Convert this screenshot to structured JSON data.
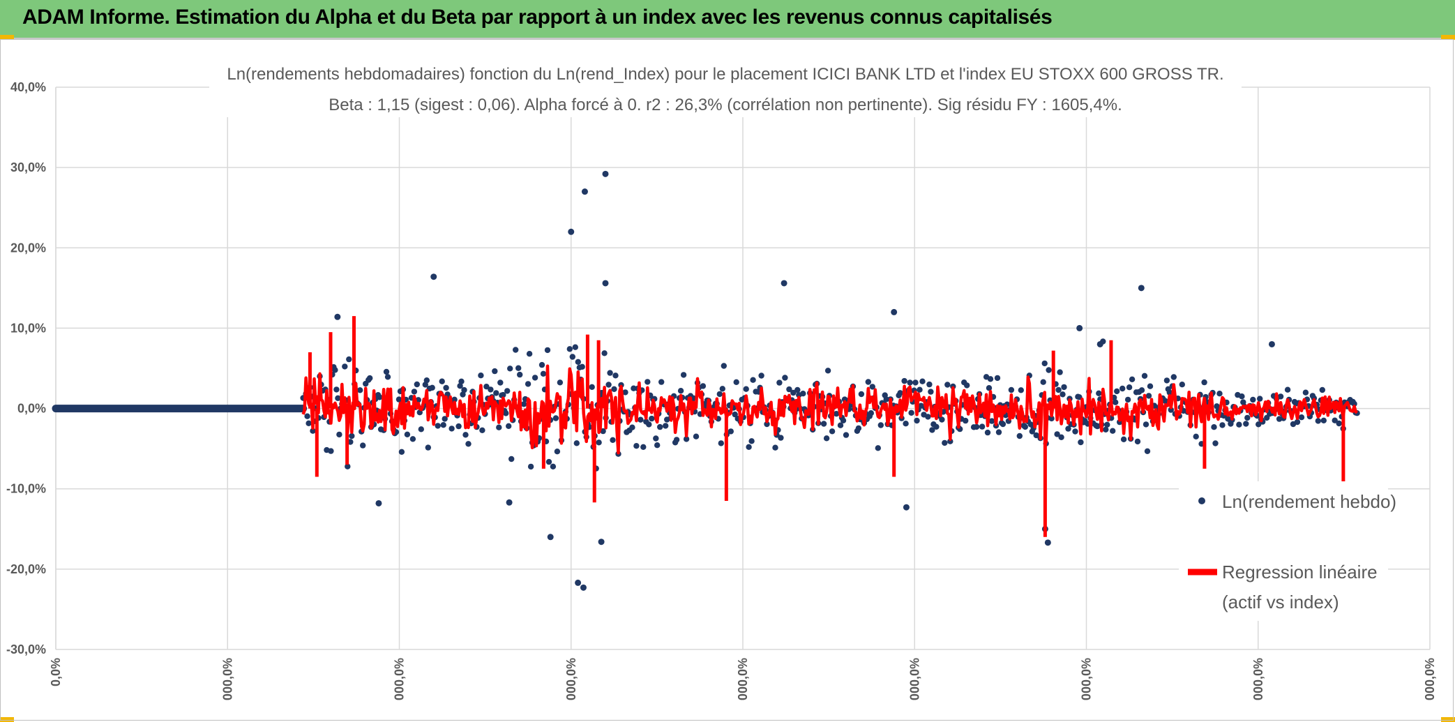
{
  "header": {
    "title": "ADAM Informe. Estimation du Alpha et du Beta par rapport à un index avec les revenus connus capitalisés"
  },
  "colors": {
    "header_bg": "#7ec87b",
    "series_points": "#203864",
    "series_regression": "#ff0000",
    "grid": "#d9d9d9",
    "text": "#595959"
  },
  "chart_data": {
    "type": "scatter",
    "title_line1": "Ln(rendements hebdomadaires) fonction du Ln(rend_Index) pour le placement ICICI BANK LTD et l'index EU STOXX 600 GROSS TR.",
    "title_line2": "Beta : 1,15 (sigest : 0,06). Alpha forcé à 0. r2 : 26,3% (corrélation non pertinente). Sig résidu FY : 1605,4%.",
    "ylim": [
      -0.3,
      0.4
    ],
    "y_ticks": [
      "40,0%",
      "30,0%",
      "20,0%",
      "10,0%",
      "0,0%",
      "-10,0%",
      "-20,0%",
      "-30,0%"
    ],
    "x_ticks": [
      "0,0%",
      "000,0%",
      "000,0%",
      "000,0%",
      "000,0%",
      "000,0%",
      "000,0%",
      "000,0%",
      "000,0%"
    ],
    "grid": true,
    "legend_position": "right",
    "series": [
      {
        "name": "Ln(rendement hebdo)",
        "style": "markers"
      },
      {
        "name": "Regression linéaire",
        "name_line2": "(actif vs index)",
        "style": "line"
      }
    ],
    "zero_run_fraction": 0.18,
    "noise_start_fraction": 0.18,
    "noise_end_fraction": 0.947,
    "notable_points": [
      {
        "xf": 0.375,
        "y": 0.22
      },
      {
        "xf": 0.385,
        "y": 0.27
      },
      {
        "xf": 0.4,
        "y": 0.292
      },
      {
        "xf": 0.4,
        "y": 0.156
      },
      {
        "xf": 0.275,
        "y": 0.164
      },
      {
        "xf": 0.53,
        "y": 0.156
      },
      {
        "xf": 0.79,
        "y": 0.15
      },
      {
        "xf": 0.38,
        "y": -0.217
      },
      {
        "xf": 0.384,
        "y": -0.223
      },
      {
        "xf": 0.397,
        "y": -0.166
      },
      {
        "xf": 0.36,
        "y": -0.16
      },
      {
        "xf": 0.722,
        "y": -0.167
      },
      {
        "xf": 0.235,
        "y": -0.118
      },
      {
        "xf": 0.619,
        "y": -0.123
      },
      {
        "xf": 0.33,
        "y": -0.117
      },
      {
        "xf": 0.61,
        "y": 0.12
      },
      {
        "xf": 0.745,
        "y": 0.1
      },
      {
        "xf": 0.76,
        "y": 0.08
      },
      {
        "xf": 0.885,
        "y": 0.08
      },
      {
        "xf": 0.205,
        "y": 0.114
      },
      {
        "xf": 0.72,
        "y": -0.15
      }
    ],
    "regression_spikes": [
      {
        "xf": 0.185,
        "y": 0.07
      },
      {
        "xf": 0.19,
        "y": -0.085
      },
      {
        "xf": 0.2,
        "y": 0.095
      },
      {
        "xf": 0.212,
        "y": -0.07
      },
      {
        "xf": 0.217,
        "y": 0.115
      },
      {
        "xf": 0.355,
        "y": -0.075
      },
      {
        "xf": 0.387,
        "y": 0.092
      },
      {
        "xf": 0.392,
        "y": -0.117
      },
      {
        "xf": 0.395,
        "y": 0.085
      },
      {
        "xf": 0.488,
        "y": -0.115
      },
      {
        "xf": 0.61,
        "y": -0.085
      },
      {
        "xf": 0.72,
        "y": -0.16
      },
      {
        "xf": 0.726,
        "y": 0.072
      },
      {
        "xf": 0.768,
        "y": 0.085
      },
      {
        "xf": 0.836,
        "y": -0.075
      },
      {
        "xf": 0.937,
        "y": -0.098
      }
    ]
  }
}
